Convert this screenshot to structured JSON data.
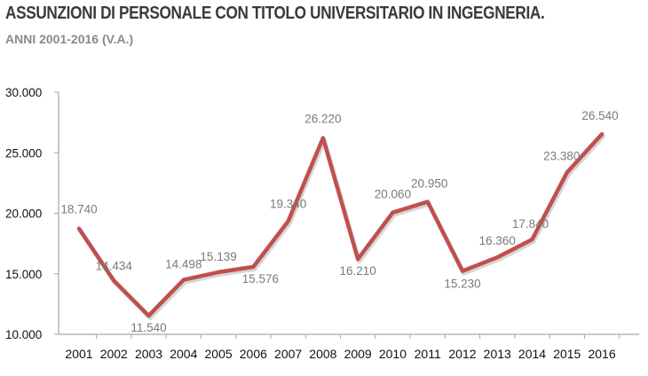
{
  "title": "ASSUNZIONI DI PERSONALE CON TITOLO UNIVERSITARIO IN INGEGNERIA.",
  "subtitle": "ANNI 2001-2016 (V.A.)",
  "colors": {
    "line": "#c0504d",
    "line_shadow": "#8a8a8a",
    "axis": "#a6a6a6",
    "title": "#3a3a3a",
    "subtitle": "#8a8a8a",
    "data_label": "#7a7a7a"
  },
  "chart_data": {
    "type": "line",
    "title": "ASSUNZIONI DI PERSONALE CON TITOLO UNIVERSITARIO IN INGEGNERIA.",
    "subtitle": "ANNI 2001-2016 (V.A.)",
    "xlabel": "",
    "ylabel": "",
    "ylim": [
      10000,
      30000
    ],
    "y_ticks": [
      10000,
      15000,
      20000,
      25000,
      30000
    ],
    "y_tick_labels": [
      "10.000",
      "15.000",
      "20.000",
      "25.000",
      "30.000"
    ],
    "grid": false,
    "categories": [
      "2001",
      "2002",
      "2003",
      "2004",
      "2005",
      "2006",
      "2007",
      "2008",
      "2009",
      "2010",
      "2011",
      "2012",
      "2013",
      "2014",
      "2015",
      "2016"
    ],
    "values": [
      18740,
      14434,
      11540,
      14498,
      15139,
      15576,
      19340,
      26220,
      16210,
      20060,
      20950,
      15230,
      16360,
      17840,
      23380,
      26540
    ],
    "data_labels": [
      "18.740",
      "14.434",
      "11.540",
      "14.498",
      "15.139",
      "15.576",
      "19.340",
      "26.220",
      "16.210",
      "20.060",
      "20.950",
      "15.230",
      "16.360",
      "17.840",
      "23.380",
      "26.540"
    ]
  }
}
